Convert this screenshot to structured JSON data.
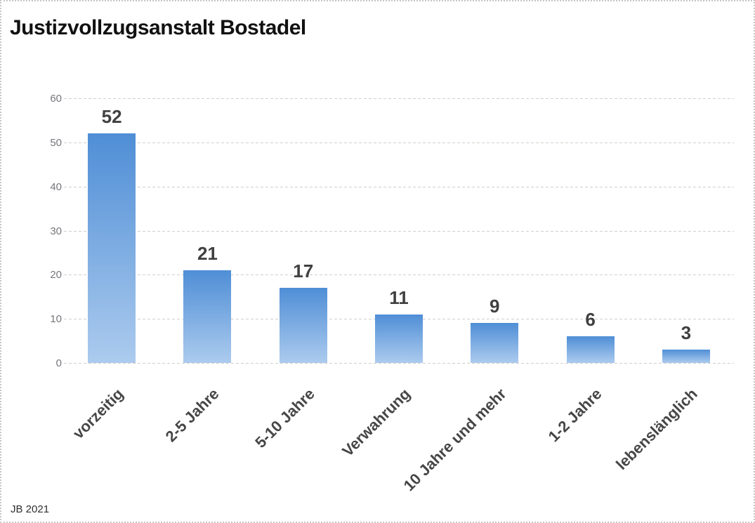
{
  "title": "Justizvollzugsanstalt Bostadel",
  "footer": "JB 2021",
  "chart_data": {
    "type": "bar",
    "title": "Justizvollzugsanstalt Bostadel",
    "categories": [
      "vorzeitig",
      "2-5 Jahre",
      "5-10 Jahre",
      "Verwahrung",
      "10 Jahre und mehr",
      "1-2 Jahre",
      "lebenslänglich"
    ],
    "values": [
      52,
      21,
      17,
      11,
      9,
      6,
      3
    ],
    "xlabel": "",
    "ylabel": "",
    "ylim": [
      0,
      60
    ],
    "yticks": [
      0,
      10,
      20,
      30,
      40,
      50,
      60
    ],
    "grid": "horizontal-dashed",
    "legend": "none",
    "annotation": "JB 2021",
    "bar_color_top": "#4f8ed6",
    "bar_color_bottom": "#accbee",
    "gridline_color": "#cfcfca",
    "tick_label_color": "#76767c",
    "data_label_color": "#404040",
    "category_label_rotation_deg": -45
  }
}
